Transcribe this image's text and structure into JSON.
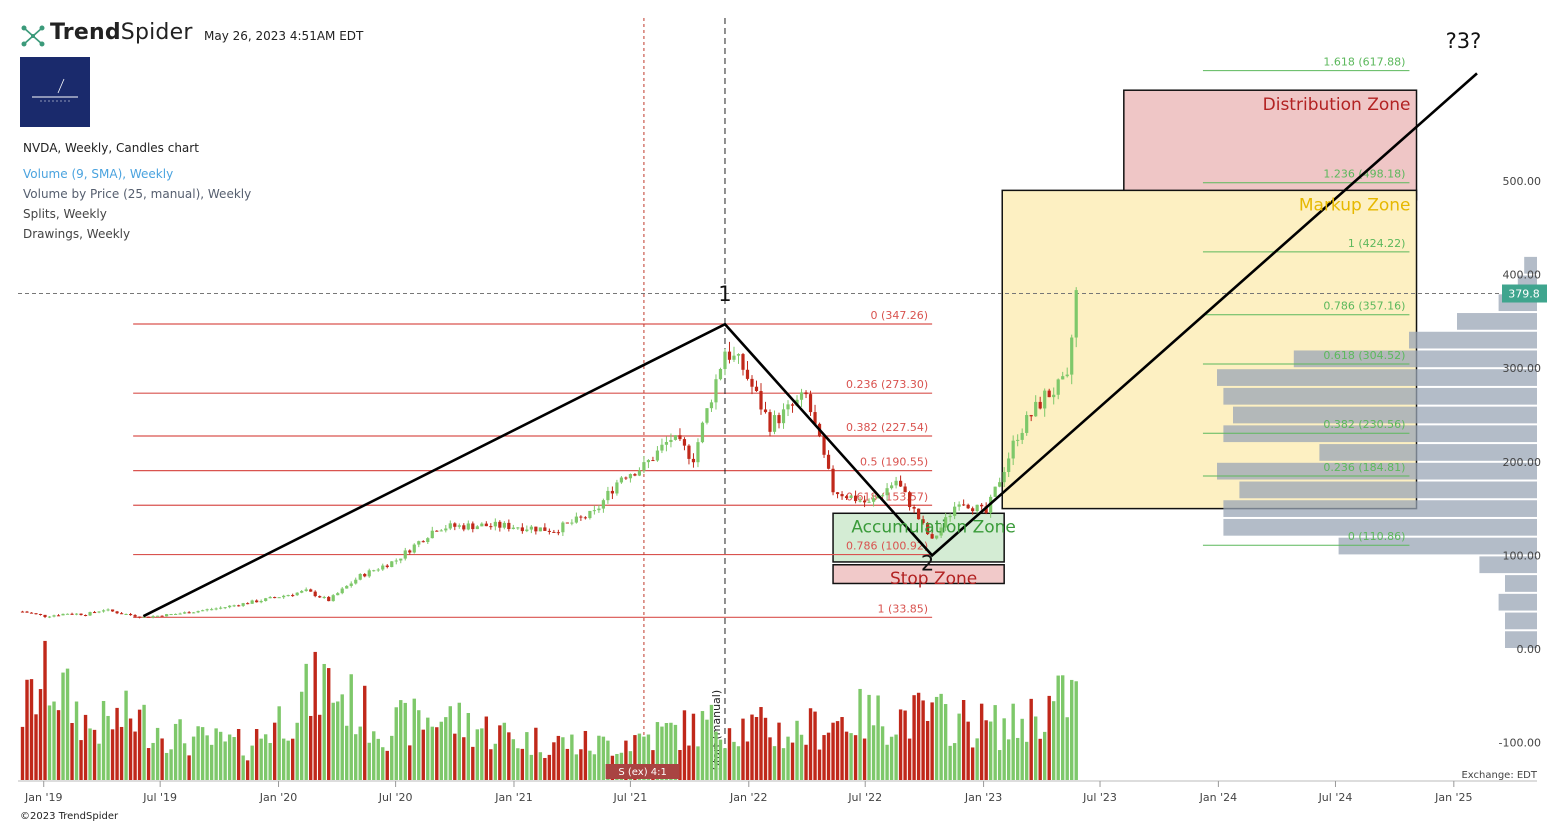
{
  "header": {
    "brand_bold": "Trend",
    "brand_light": "Spider",
    "timestamp": "May 26, 2023 4:51AM EDT",
    "chart_title": "NVDA, Weekly, Candles chart",
    "indicators": [
      {
        "label": "Volume (9, SMA), Weekly",
        "color": "#4aa3df"
      },
      {
        "label": "Volume by Price (25, manual), Weekly",
        "color": "#555e6e"
      },
      {
        "label": "Splits, Weekly",
        "color": "#444444"
      },
      {
        "label": "Drawings, Weekly",
        "color": "#444444"
      }
    ]
  },
  "footer": {
    "copyright": "©2023 TrendSpider",
    "exchange": "Exchange: EDT"
  },
  "chart_data": {
    "type": "candlestick",
    "symbol": "NVDA",
    "interval": "Weekly",
    "x_ticks": [
      "Jan '19",
      "Jul '19",
      "Jan '20",
      "Jul '20",
      "Jan '21",
      "Jul '21",
      "Jan '22",
      "Jul '22",
      "Jan '23",
      "Jul '23",
      "Jan '24",
      "Jul '24",
      "Jan '25"
    ],
    "x_range": [
      "2018-11-22",
      "2025-03-06"
    ],
    "y_ticks": [
      "500.00",
      "400.00",
      "300.00",
      "200.00",
      "100.00",
      "0.00",
      "-100.00"
    ],
    "ylim": [
      -140,
      650
    ],
    "last_price": "379.8",
    "colors": {
      "up": "#7ec86a",
      "down": "#c0281a",
      "fib_red": "#d9534f",
      "fib_green": "#5cb85c"
    },
    "price_path": [
      [
        "2018-11-29",
        40
      ],
      [
        "2019-01-03",
        35
      ],
      [
        "2019-02-07",
        38
      ],
      [
        "2019-03-07",
        37
      ],
      [
        "2019-04-04",
        42
      ],
      [
        "2019-05-02",
        38
      ],
      [
        "2019-06-05",
        34
      ],
      [
        "2019-08-01",
        38
      ],
      [
        "2019-10-03",
        44
      ],
      [
        "2019-12-05",
        52
      ],
      [
        "2020-02-13",
        62
      ],
      [
        "2020-03-19",
        52
      ],
      [
        "2020-05-07",
        78
      ],
      [
        "2020-07-02",
        95
      ],
      [
        "2020-09-03",
        130
      ],
      [
        "2020-11-05",
        132
      ],
      [
        "2021-01-07",
        131
      ],
      [
        "2021-03-04",
        127
      ],
      [
        "2021-05-06",
        145
      ],
      [
        "2021-06-17",
        185
      ],
      [
        "2021-07-22",
        195
      ],
      [
        "2021-09-02",
        225
      ],
      [
        "2021-10-07",
        205
      ],
      [
        "2021-11-25",
        320
      ],
      [
        "2021-12-23",
        300
      ],
      [
        "2022-02-03",
        240
      ],
      [
        "2022-03-31",
        270
      ],
      [
        "2022-05-12",
        170
      ],
      [
        "2022-07-07",
        155
      ],
      [
        "2022-08-18",
        180
      ],
      [
        "2022-10-13",
        115
      ],
      [
        "2022-11-24",
        160
      ],
      [
        "2023-01-05",
        145
      ],
      [
        "2023-02-23",
        230
      ],
      [
        "2023-04-06",
        270
      ],
      [
        "2023-05-11",
        285
      ],
      [
        "2023-05-25",
        380
      ]
    ],
    "volume_path": [
      [
        "2018-11-29",
        60
      ],
      [
        "2019-01-10",
        90
      ],
      [
        "2019-03-14",
        45
      ],
      [
        "2019-05-16",
        55
      ],
      [
        "2019-08-15",
        35
      ],
      [
        "2019-11-14",
        30
      ],
      [
        "2020-03-12",
        85
      ],
      [
        "2020-06-11",
        45
      ],
      [
        "2020-09-10",
        55
      ],
      [
        "2021-01-14",
        35
      ],
      [
        "2021-05-13",
        30
      ],
      [
        "2021-08-12",
        40
      ],
      [
        "2021-11-25",
        50
      ],
      [
        "2022-03-10",
        40
      ],
      [
        "2022-06-09",
        55
      ],
      [
        "2022-10-13",
        55
      ],
      [
        "2023-02-09",
        45
      ],
      [
        "2023-05-25",
        75
      ]
    ],
    "split_marker": {
      "date": "2021-07-20",
      "label": "S (ex) 4:1"
    },
    "vertical_markers": [
      {
        "date": "2021-07-22",
        "style": "dotted-red"
      },
      {
        "date": "2021-11-25",
        "style": "dashed-black",
        "label": "Start (manual)"
      }
    ],
    "fib_retracement": [
      {
        "label": "0 (347.26)",
        "value": 347.26
      },
      {
        "label": "0.236 (273.30)",
        "value": 273.3
      },
      {
        "label": "0.382 (227.54)",
        "value": 227.54
      },
      {
        "label": "0.5 (190.55)",
        "value": 190.55
      },
      {
        "label": "0.618 (153.57)",
        "value": 153.57
      },
      {
        "label": "0.786 (100.92)",
        "value": 100.92
      },
      {
        "label": "1 (33.85)",
        "value": 33.85
      }
    ],
    "fib_extension": [
      {
        "label": "1.618 (617.88)",
        "value": 617.88
      },
      {
        "label": "1.236 (498.18)",
        "value": 498.18
      },
      {
        "label": "1 (424.22)",
        "value": 424.22
      },
      {
        "label": "0.786 (357.16)",
        "value": 357.16
      },
      {
        "label": "0.618 (304.52)",
        "value": 304.52
      },
      {
        "label": "0.382 (230.56)",
        "value": 230.56
      },
      {
        "label": "0.236 (184.81)",
        "value": 184.81
      },
      {
        "label": "0 (110.86)",
        "value": 110.86
      }
    ],
    "zones": [
      {
        "label": "Distribution Zone",
        "from": "2023-08-07",
        "to": "2024-11-04",
        "top": 597,
        "bottom": 480,
        "fill": "#efc6c6",
        "text_color": "#b22222"
      },
      {
        "label": "Markup Zone",
        "from": "2023-01-30",
        "to": "2024-11-04",
        "top": 490,
        "bottom": 150,
        "fill": "#fdf0c2",
        "text_color": "#e6b800"
      },
      {
        "label": "Accumulation Zone",
        "from": "2022-05-12",
        "to": "2023-02-02",
        "top": 145,
        "bottom": 93,
        "fill": "#d4ecd4",
        "text_color": "#3a9b3a"
      },
      {
        "label": "Stop Zone",
        "from": "2022-05-12",
        "to": "2023-02-02",
        "top": 90,
        "bottom": 70,
        "fill": "#f1c9c9",
        "text_color": "#b22222"
      }
    ],
    "wave_lines": [
      [
        [
          "2019-06-05",
          35
        ],
        [
          "2021-11-25",
          347
        ],
        [
          "2022-10-13",
          100
        ],
        [
          "2025-02-06",
          615
        ]
      ]
    ],
    "wave_labels": [
      {
        "label": "1",
        "date": "2021-11-25",
        "price": 372
      },
      {
        "label": "2",
        "date": "2022-10-06",
        "price": 84
      },
      {
        "label": "?3?",
        "date": "2025-01-16",
        "price": 642
      }
    ],
    "volume_by_price": [
      [
        0,
        0.1
      ],
      [
        20,
        0.1
      ],
      [
        40,
        0.12
      ],
      [
        60,
        0.1
      ],
      [
        80,
        0.18
      ],
      [
        100,
        0.62
      ],
      [
        120,
        0.98
      ],
      [
        140,
        0.98
      ],
      [
        160,
        0.93
      ],
      [
        180,
        1.0
      ],
      [
        200,
        0.68
      ],
      [
        220,
        0.98
      ],
      [
        240,
        0.95
      ],
      [
        260,
        0.98
      ],
      [
        280,
        1.0
      ],
      [
        300,
        0.76
      ],
      [
        320,
        0.4
      ],
      [
        340,
        0.25
      ],
      [
        360,
        0.12
      ],
      [
        380,
        0.06
      ],
      [
        400,
        0.04
      ]
    ]
  }
}
